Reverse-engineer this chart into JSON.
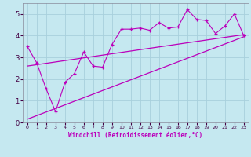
{
  "xlabel": "Windchill (Refroidissement éolien,°C)",
  "background_color": "#c5e8f0",
  "grid_color": "#a8d0dc",
  "line_color": "#bb00bb",
  "xlim": [
    -0.5,
    23.5
  ],
  "ylim": [
    0,
    5.5
  ],
  "xticks": [
    0,
    1,
    2,
    3,
    4,
    5,
    6,
    7,
    8,
    9,
    10,
    11,
    12,
    13,
    14,
    15,
    16,
    17,
    18,
    19,
    20,
    21,
    22,
    23
  ],
  "yticks": [
    0,
    1,
    2,
    3,
    4,
    5
  ],
  "line1_x": [
    0,
    1,
    2,
    3,
    4,
    5,
    6,
    7,
    8,
    9,
    10,
    11,
    12,
    13,
    14,
    15,
    16,
    17,
    18,
    19,
    20,
    21,
    22,
    23
  ],
  "line1_y": [
    3.5,
    2.75,
    1.55,
    0.5,
    1.85,
    2.25,
    3.25,
    2.6,
    2.55,
    3.6,
    4.3,
    4.3,
    4.35,
    4.25,
    4.6,
    4.35,
    4.4,
    5.2,
    4.75,
    4.7,
    4.1,
    4.45,
    5.0,
    4.0
  ],
  "line2_x": [
    0,
    23
  ],
  "line2_y": [
    2.6,
    4.05
  ],
  "line3_x": [
    0,
    23
  ],
  "line3_y": [
    0.15,
    3.95
  ]
}
